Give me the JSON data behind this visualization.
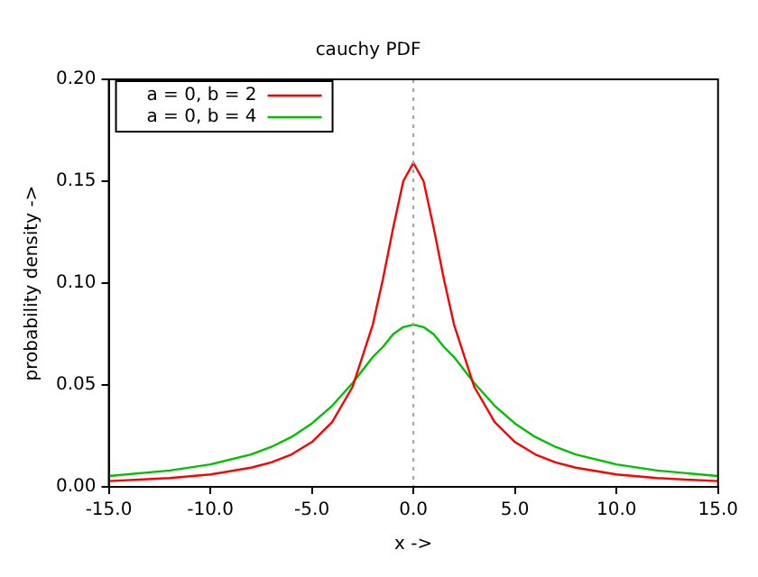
{
  "chart_data": {
    "type": "line",
    "title": "cauchy PDF",
    "xlabel": "x ->",
    "ylabel": "probability density ->",
    "x": [
      -15,
      -12,
      -10,
      -8,
      -7,
      -6,
      -5,
      -4,
      -3,
      -2,
      -1.5,
      -1,
      -0.5,
      0,
      0.5,
      1,
      1.5,
      2,
      3,
      4,
      5,
      6,
      7,
      8,
      10,
      12,
      15
    ],
    "series": [
      {
        "name": "a = 0, b = 2",
        "color": "#ff0000",
        "values": [
          0.0028,
          0.0043,
          0.0061,
          0.0094,
          0.012,
          0.0159,
          0.022,
          0.0318,
          0.049,
          0.0796,
          0.102,
          0.127,
          0.15,
          0.159,
          0.15,
          0.127,
          0.102,
          0.0796,
          0.049,
          0.0318,
          0.022,
          0.0159,
          0.012,
          0.0094,
          0.0061,
          0.0043,
          0.0028
        ]
      },
      {
        "name": "a = 0, b = 4",
        "color": "#00c000",
        "values": [
          0.0053,
          0.008,
          0.011,
          0.0159,
          0.0196,
          0.0245,
          0.0311,
          0.0398,
          0.0509,
          0.0637,
          0.0687,
          0.0749,
          0.0784,
          0.0796,
          0.0784,
          0.0749,
          0.0687,
          0.0637,
          0.0509,
          0.0398,
          0.0311,
          0.0245,
          0.0196,
          0.0159,
          0.011,
          0.008,
          0.0053
        ]
      }
    ],
    "xlim": [
      -15,
      15
    ],
    "xticks": [
      {
        "value": -15,
        "label": "-15.0"
      },
      {
        "value": -10,
        "label": "-10.0"
      },
      {
        "value": -5,
        "label": "-5.0"
      },
      {
        "value": 0,
        "label": "0.0"
      },
      {
        "value": 5,
        "label": "5.0"
      },
      {
        "value": 10,
        "label": "10.0"
      },
      {
        "value": 15,
        "label": "15.0"
      }
    ],
    "ylim": [
      0,
      0.2
    ],
    "yticks": [
      {
        "value": 0,
        "label": "0.00"
      },
      {
        "value": 0.05,
        "label": "0.05"
      },
      {
        "value": 0.1,
        "label": "0.10"
      },
      {
        "value": 0.15,
        "label": "0.15"
      },
      {
        "value": 0.2,
        "label": "0.20"
      }
    ],
    "ref_lines": [
      {
        "axis": "x",
        "value": 0,
        "color": "#a0a0a0",
        "line_style": "dotted"
      }
    ],
    "legend": "top left",
    "marker": "none",
    "line_style": "solid",
    "grid": false
  }
}
